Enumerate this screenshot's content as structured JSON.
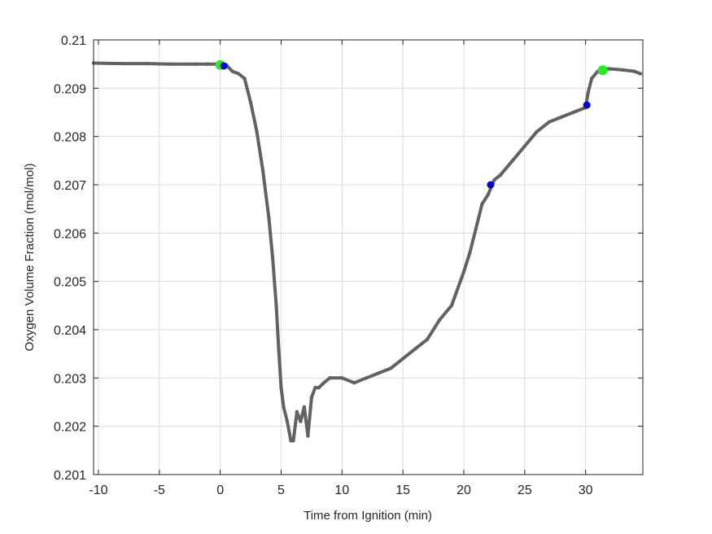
{
  "chart_data": {
    "type": "scatter",
    "title": "",
    "xlabel": "Time from Ignition (min)",
    "ylabel": "Oxygen Volume Fraction (mol/mol)",
    "xlim": [
      -10.4,
      34.7
    ],
    "ylim": [
      0.201,
      0.21
    ],
    "x_ticks": [
      -10,
      -5,
      0,
      5,
      10,
      15,
      20,
      25,
      30
    ],
    "x_tick_labels": [
      "-10",
      "-5",
      "0",
      "5",
      "10",
      "15",
      "20",
      "25",
      "30"
    ],
    "y_ticks": [
      0.201,
      0.202,
      0.203,
      0.204,
      0.205,
      0.206,
      0.207,
      0.208,
      0.209,
      0.21
    ],
    "y_tick_labels": [
      "0.201",
      "0.202",
      "0.203",
      "0.204",
      "0.205",
      "0.206",
      "0.207",
      "0.208",
      "0.209",
      "0.21"
    ],
    "grid": true,
    "series": [
      {
        "role": "measurement",
        "color": "#626262",
        "x": [
          -10.4,
          -8,
          -6,
          -4,
          -2,
          -1,
          0,
          0.5,
          1.0,
          1.5,
          2.0,
          2.5,
          3.0,
          3.5,
          4.0,
          4.3,
          4.6,
          4.8,
          5.0,
          5.2,
          5.5,
          5.8,
          6.0,
          6.3,
          6.6,
          6.9,
          7.2,
          7.5,
          7.8,
          8.1,
          8.5,
          9.0,
          10.0,
          11.0,
          12.0,
          13.0,
          14.0,
          15.0,
          16.0,
          17.0,
          18.0,
          19.0,
          20.0,
          20.5,
          21.0,
          21.5,
          22.0,
          22.5,
          23.0,
          24.0,
          25.0,
          26.0,
          27.0,
          28.0,
          29.0,
          30.0,
          30.2,
          30.5,
          31.0,
          31.5,
          32.0,
          33.0,
          34.0,
          34.5
        ],
        "y": [
          0.20952,
          0.20951,
          0.20951,
          0.2095,
          0.2095,
          0.2095,
          0.2095,
          0.20948,
          0.20935,
          0.2093,
          0.2092,
          0.2087,
          0.2081,
          0.2073,
          0.2063,
          0.2055,
          0.2045,
          0.2036,
          0.2028,
          0.2024,
          0.2021,
          0.2017,
          0.2017,
          0.2023,
          0.2021,
          0.2024,
          0.2018,
          0.2026,
          0.2028,
          0.2028,
          0.2029,
          0.203,
          0.203,
          0.2029,
          0.203,
          0.2031,
          0.2032,
          0.2034,
          0.2036,
          0.2038,
          0.2042,
          0.2045,
          0.2052,
          0.2056,
          0.2061,
          0.2066,
          0.2068,
          0.2071,
          0.2072,
          0.2075,
          0.2078,
          0.2081,
          0.2083,
          0.2084,
          0.2085,
          0.2086,
          0.2089,
          0.2092,
          0.20935,
          0.2094,
          0.2094,
          0.20938,
          0.20935,
          0.2093
        ]
      },
      {
        "role": "start-end markers",
        "color": "#22ee22",
        "x": [
          0.0,
          31.4
        ],
        "y": [
          0.20948,
          0.20937
        ]
      },
      {
        "role": "event markers",
        "color": "#0000dd",
        "x": [
          0.3,
          22.2,
          30.1
        ],
        "y": [
          0.20946,
          0.207,
          0.20865
        ]
      }
    ]
  }
}
